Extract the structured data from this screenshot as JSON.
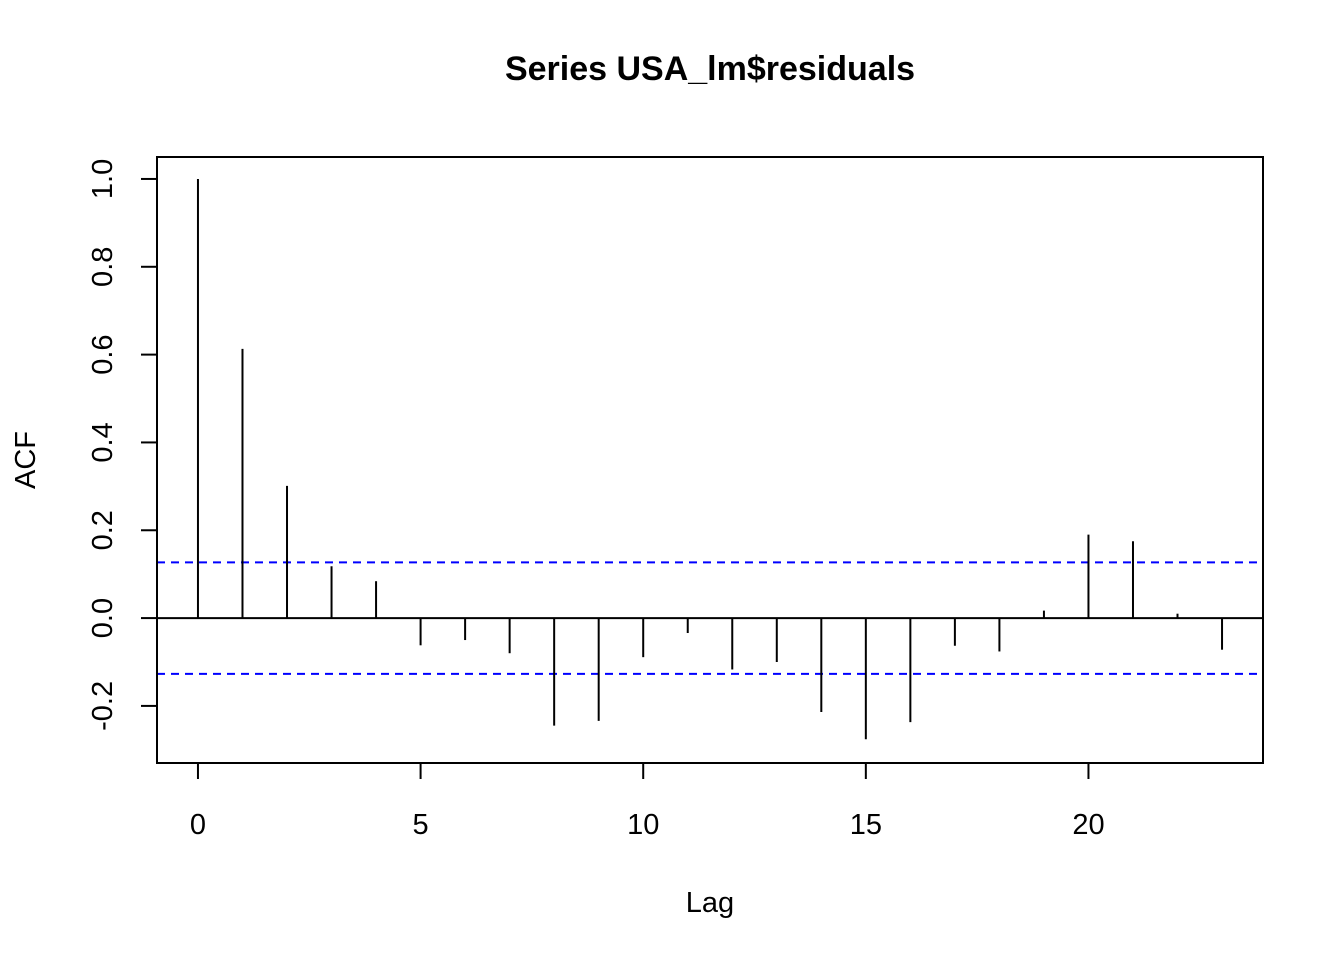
{
  "chart_data": {
    "type": "bar",
    "title": "Series  USA_lm$residuals",
    "xlabel": "Lag",
    "ylabel": "ACF",
    "xlim": [
      -0.92,
      23.92
    ],
    "ylim": [
      -0.33,
      1.05
    ],
    "xticks": [
      0,
      5,
      10,
      15,
      20
    ],
    "yticks": [
      -0.2,
      0.0,
      0.2,
      0.4,
      0.6,
      0.8,
      1.0
    ],
    "ytick_labels": [
      "-0.2",
      "0.0",
      "0.2",
      "0.4",
      "0.6",
      "0.8",
      "1.0"
    ],
    "lags": [
      0,
      1,
      2,
      3,
      4,
      5,
      6,
      7,
      8,
      9,
      10,
      11,
      12,
      13,
      14,
      15,
      16,
      17,
      18,
      19,
      20,
      21,
      22,
      23
    ],
    "values": [
      1.0,
      0.613,
      0.301,
      0.118,
      0.084,
      -0.062,
      -0.05,
      -0.08,
      -0.245,
      -0.234,
      -0.089,
      -0.034,
      -0.117,
      -0.1,
      -0.214,
      -0.276,
      -0.237,
      -0.063,
      -0.076,
      0.017,
      0.19,
      0.175,
      0.01,
      -0.072
    ],
    "confidence_bound": 0.127,
    "colors": {
      "bars": "#000000",
      "confidence_lines": "#0000ff",
      "zero_line": "#000000"
    },
    "grid": false,
    "legend": "none"
  }
}
